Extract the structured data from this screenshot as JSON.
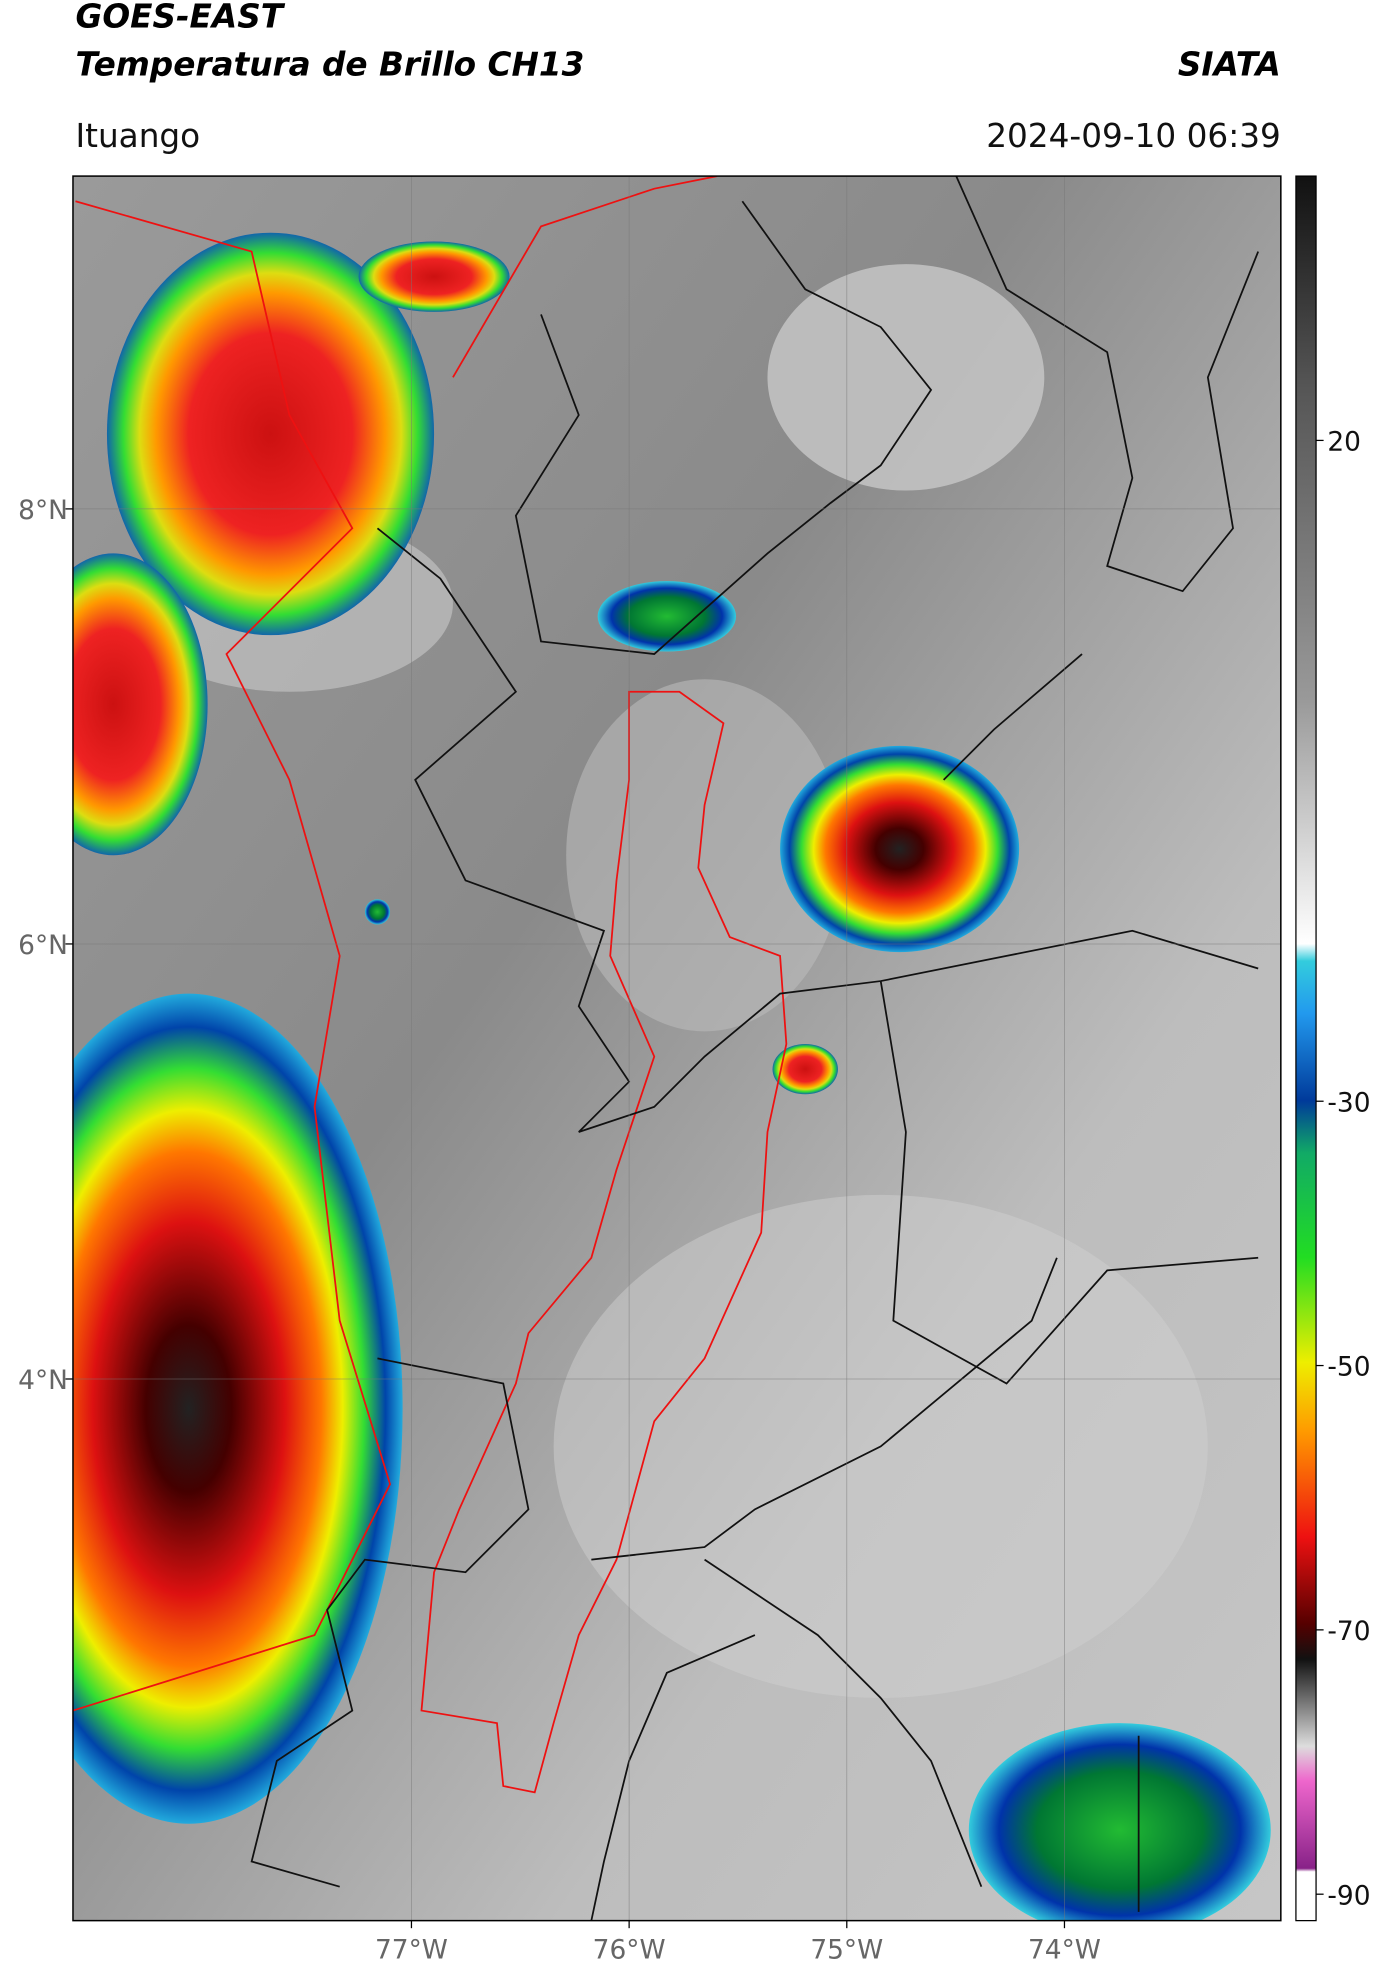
{
  "header": {
    "title_line1": "GOES-EAST",
    "title_line2": "Temperatura de Brillo CH13",
    "organization": "SIATA",
    "location": "Ituango",
    "datetime": "2024-09-10 06:39"
  },
  "map": {
    "xlim": [
      -78.555,
      -73.006
    ],
    "ylim": [
      1.51,
      9.53
    ],
    "xticks": [
      {
        "value": -77,
        "label": "77°W"
      },
      {
        "value": -76,
        "label": "76°W"
      },
      {
        "value": -75,
        "label": "75°W"
      },
      {
        "value": -74,
        "label": "74°W"
      }
    ],
    "yticks": [
      {
        "value": 8,
        "label": "8°N"
      },
      {
        "value": 6,
        "label": "6°N"
      },
      {
        "value": 4,
        "label": "4°N"
      }
    ],
    "grid": true
  },
  "colorbar": {
    "lim": [
      -92,
      40
    ],
    "ticks": [
      20,
      -30,
      -50,
      -70,
      -90
    ]
  }
}
